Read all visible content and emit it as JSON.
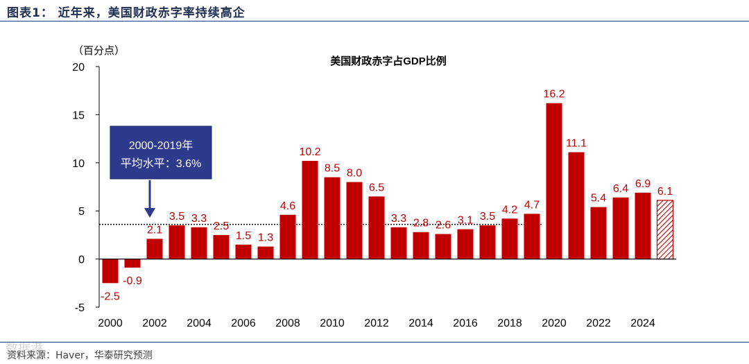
{
  "figure_title": "图表1： 近年来，美国财政赤字率持续高企",
  "source": "资料来源：Haver，华泰研究预测",
  "watermark": "数据港",
  "chart_data": {
    "type": "bar",
    "title": "美国财政赤字占GDP比例",
    "ylabel": "（百分点）",
    "xlabel": "",
    "ylim": [
      -5,
      20
    ],
    "yticks": [
      -5,
      0,
      5,
      10,
      15,
      20
    ],
    "categories": [
      "2000",
      "2001",
      "2002",
      "2003",
      "2004",
      "2005",
      "2006",
      "2007",
      "2008",
      "2009",
      "2010",
      "2011",
      "2012",
      "2013",
      "2014",
      "2015",
      "2016",
      "2017",
      "2018",
      "2019",
      "2020",
      "2021",
      "2022",
      "2023",
      "2024",
      "2025"
    ],
    "xtick_labels": [
      "2000",
      "2002",
      "2004",
      "2006",
      "2008",
      "2010",
      "2012",
      "2014",
      "2016",
      "2018",
      "2020",
      "2022",
      "2024"
    ],
    "values": [
      -2.5,
      -0.9,
      2.1,
      3.5,
      3.3,
      2.5,
      1.5,
      1.3,
      4.6,
      10.2,
      8.5,
      8.0,
      6.5,
      3.3,
      2.8,
      2.6,
      3.1,
      3.5,
      4.2,
      4.7,
      16.2,
      11.1,
      5.4,
      6.4,
      6.9,
      6.1
    ],
    "value_labels": [
      "-2.5",
      "-0.9",
      "2.1",
      "3.5",
      "3.3",
      "2.5",
      "1.5",
      "1.3",
      "4.6",
      "10.2",
      "8.5",
      "8.0",
      "6.5",
      "3.3",
      "2.8",
      "2.6",
      "3.1",
      "3.5",
      "4.2",
      "4.7",
      "16.2",
      "11.1",
      "5.4",
      "6.4",
      "6.9",
      "6.1"
    ],
    "forecast": [
      false,
      false,
      false,
      false,
      false,
      false,
      false,
      false,
      false,
      false,
      false,
      false,
      false,
      false,
      false,
      false,
      false,
      false,
      false,
      false,
      false,
      false,
      false,
      false,
      false,
      true
    ],
    "average": {
      "value": 3.6,
      "start": "2000",
      "end": "2019",
      "label_line1": "2000-2019年",
      "label_line2": "平均水平：3.6%",
      "arrow_target": "2002"
    },
    "colors": {
      "bar": "#c00000",
      "forecast_hatch": "#c00000",
      "label": "#c00000",
      "axis": "#000000",
      "annotation_box": "#2e3a8c",
      "annotation_text": "#ffffff",
      "arrow": "#2e3a8c",
      "title": "#000000"
    }
  }
}
